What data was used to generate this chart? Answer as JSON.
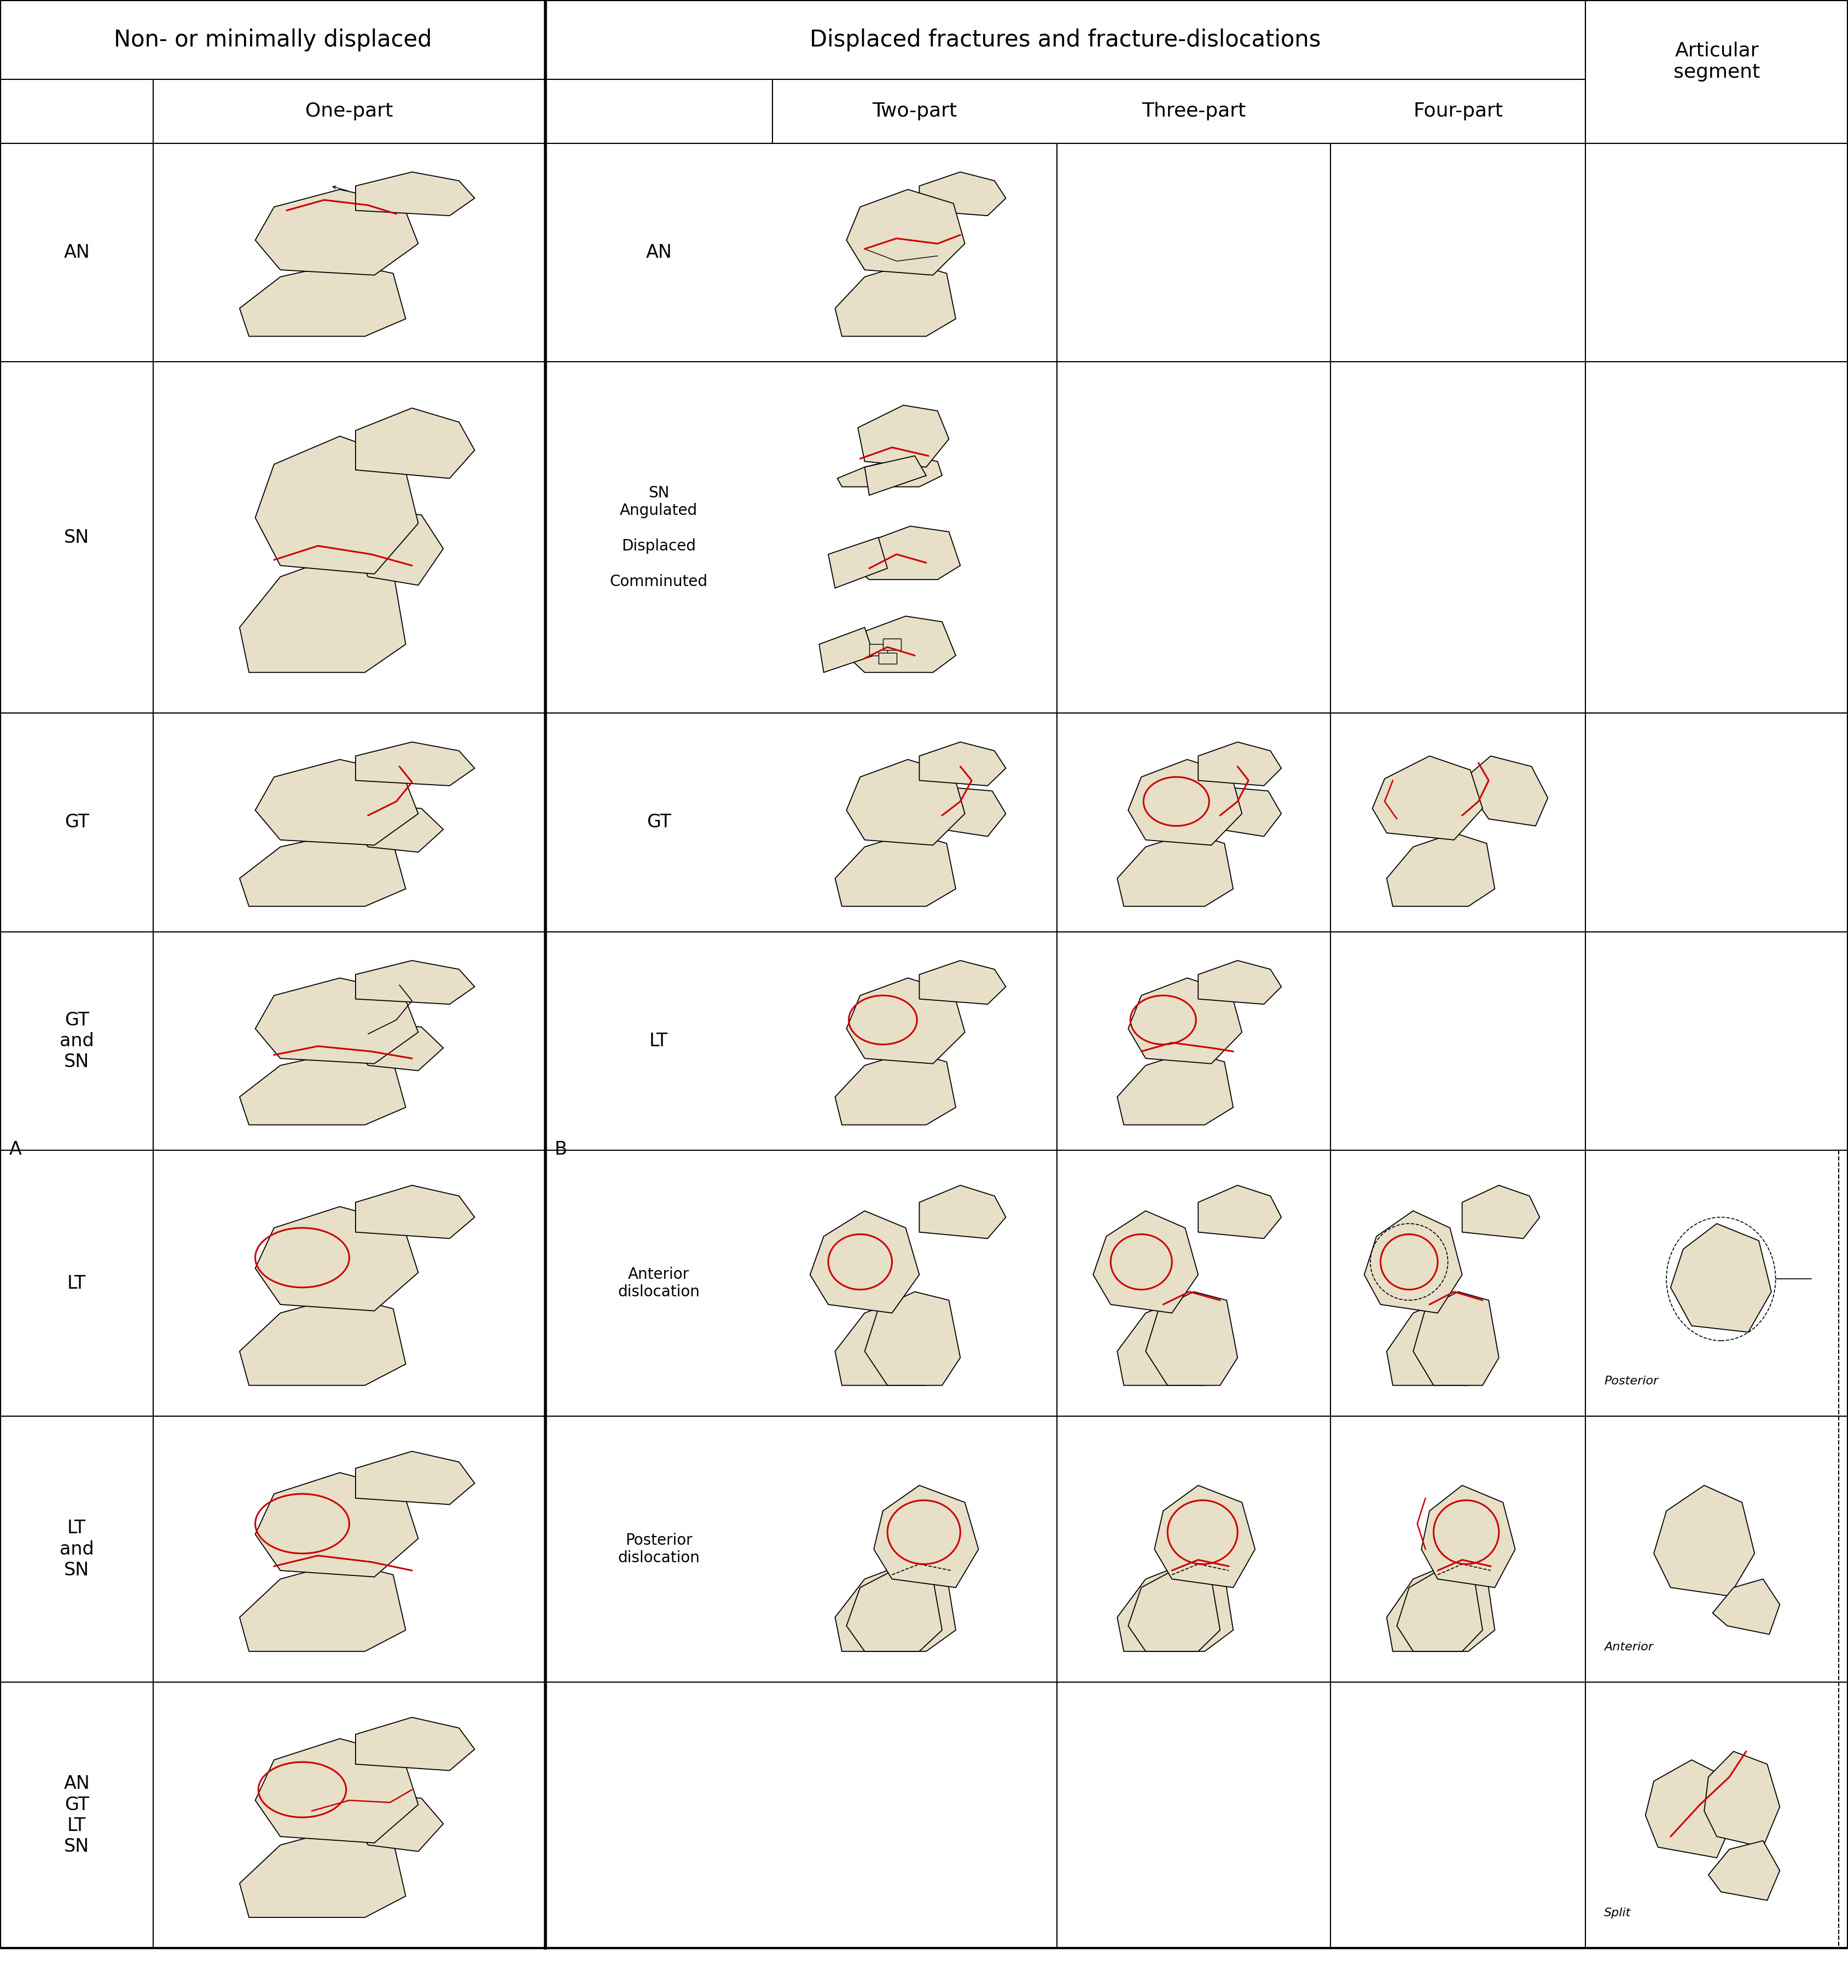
{
  "fig_width": 33.78,
  "fig_height": 36.33,
  "bg_color": "#ffffff",
  "bone_fill": "#e8dfc8",
  "red_color": "#cc0000",
  "black_color": "#000000",
  "header1_left": "Non- or minimally displaced",
  "header1_right": "Displaced fractures and fracture-dislocations",
  "header2_onepart": "One-part",
  "header2_twopart": "Two-part",
  "header2_threepart": "Three-part",
  "header2_fourpart": "Four-part",
  "header2_articular": "Articular\nsegment",
  "font_size_h1": 30,
  "font_size_h2": 26,
  "font_size_label": 24,
  "font_size_sublabel": 20,
  "font_size_small": 16
}
